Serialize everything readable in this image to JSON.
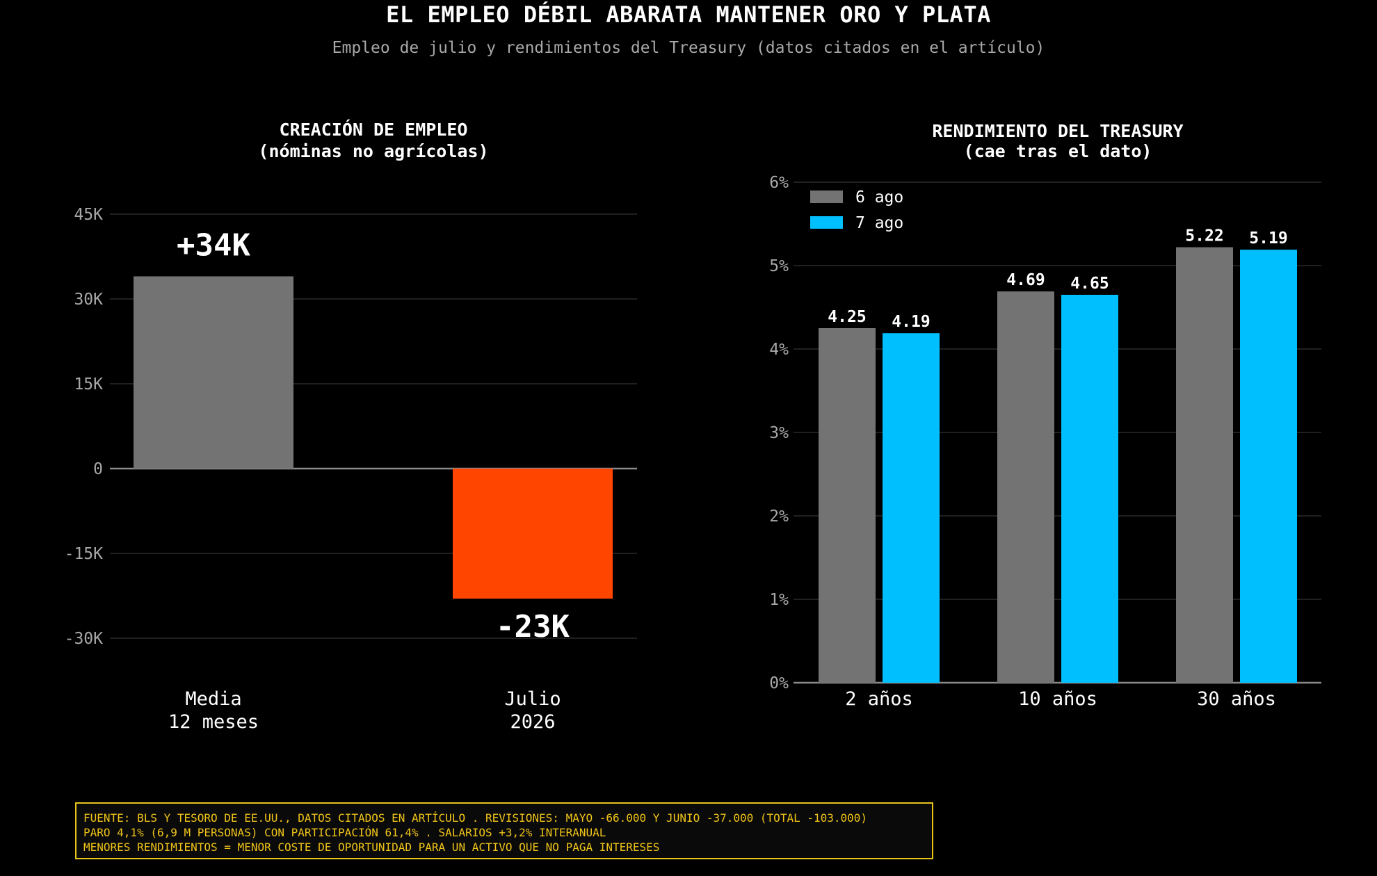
{
  "title": "EL EMPLEO DÉBIL ABARATA MANTENER ORO Y PLATA",
  "subtitle": "Empleo de julio y rendimientos del Treasury (datos citados en el artículo)",
  "chart_data": [
    {
      "type": "bar",
      "title": "CREACIÓN DE EMPLEO",
      "subtitle": "(nóminas no agrícolas)",
      "categories": [
        [
          "Media",
          "12 meses"
        ],
        [
          "Julio",
          "2026"
        ]
      ],
      "values": [
        34000,
        -23000
      ],
      "value_labels": [
        "+34K",
        "-23K"
      ],
      "colors": [
        "#737373",
        "#ff4500"
      ],
      "ylim": [
        -39000,
        45000
      ],
      "yticks": [
        -30000,
        -15000,
        0,
        15000,
        30000,
        45000
      ],
      "ytick_labels": [
        "-30K",
        "-15K",
        "0",
        "15K",
        "30K",
        "45K"
      ],
      "grid": true
    },
    {
      "type": "bar",
      "title": "RENDIMIENTO DEL TREASURY",
      "subtitle": "(cae tras el dato)",
      "categories": [
        "2 años",
        "10 años",
        "30 años"
      ],
      "series": [
        {
          "name": "6 ago",
          "color": "#737373",
          "values": [
            4.25,
            4.69,
            5.22
          ]
        },
        {
          "name": "7 ago",
          "color": "#00bfff",
          "values": [
            4.19,
            4.65,
            5.19
          ]
        }
      ],
      "value_labels": [
        [
          "4.25",
          "4.69",
          "5.22"
        ],
        [
          "4.19",
          "4.65",
          "5.19"
        ]
      ],
      "ylim": [
        0,
        6
      ],
      "yticks": [
        0,
        1,
        2,
        3,
        4,
        5,
        6
      ],
      "ytick_labels": [
        "0%",
        "1%",
        "2%",
        "3%",
        "4%",
        "5%",
        "6%"
      ],
      "legend_position": "top-left",
      "grid": true
    }
  ],
  "footnote": [
    "FUENTE: BLS Y TESORO DE EE.UU., DATOS CITADOS EN ARTÍCULO . REVISIONES: MAYO -66.000 Y JUNIO -37.000 (TOTAL -103.000)",
    "PARO 4,1% (6,9 M PERSONAS) CON PARTICIPACIÓN 61,4% . SALARIOS +3,2% INTERANUAL",
    "MENORES RENDIMIENTOS = MENOR COSTE DE OPORTUNIDAD PARA UN ACTIVO QUE NO PAGA INTERESES"
  ]
}
